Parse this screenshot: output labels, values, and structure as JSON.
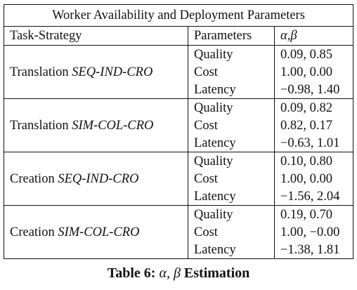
{
  "table": {
    "title": "Worker Availability and Deployment Parameters",
    "headers": {
      "task_strategy": "Task-Strategy",
      "parameters": "Parameters",
      "alpha_beta": "α,β"
    },
    "groups": [
      {
        "task": "Translation",
        "strategy": "SEQ-IND-CRO",
        "rows": [
          {
            "parameter": "Quality",
            "value": "0.09, 0.85"
          },
          {
            "parameter": "Cost",
            "value": "1.00, 0.00"
          },
          {
            "parameter": "Latency",
            "value": "−0.98, 1.40"
          }
        ]
      },
      {
        "task": "Translation",
        "strategy": "SIM-COL-CRO",
        "rows": [
          {
            "parameter": "Quality",
            "value": "0.09, 0.82"
          },
          {
            "parameter": "Cost",
            "value": "0.82, 0.17"
          },
          {
            "parameter": "Latency",
            "value": "−0.63, 1.01"
          }
        ]
      },
      {
        "task": "Creation",
        "strategy": "SEQ-IND-CRO",
        "rows": [
          {
            "parameter": "Quality",
            "value": "0.10, 0.80"
          },
          {
            "parameter": "Cost",
            "value": "1.00, 0.00"
          },
          {
            "parameter": "Latency",
            "value": "−1.56, 2.04"
          }
        ]
      },
      {
        "task": "Creation",
        "strategy": "SIM-COL-CRO",
        "rows": [
          {
            "parameter": "Quality",
            "value": "0.19, 0.70"
          },
          {
            "parameter": "Cost",
            "value": "1.00, −0.00"
          },
          {
            "parameter": "Latency",
            "value": "−1.38, 1.81"
          }
        ]
      }
    ]
  },
  "caption": {
    "label": "Table 6:",
    "greek": "α, β",
    "text": "Estimation"
  }
}
